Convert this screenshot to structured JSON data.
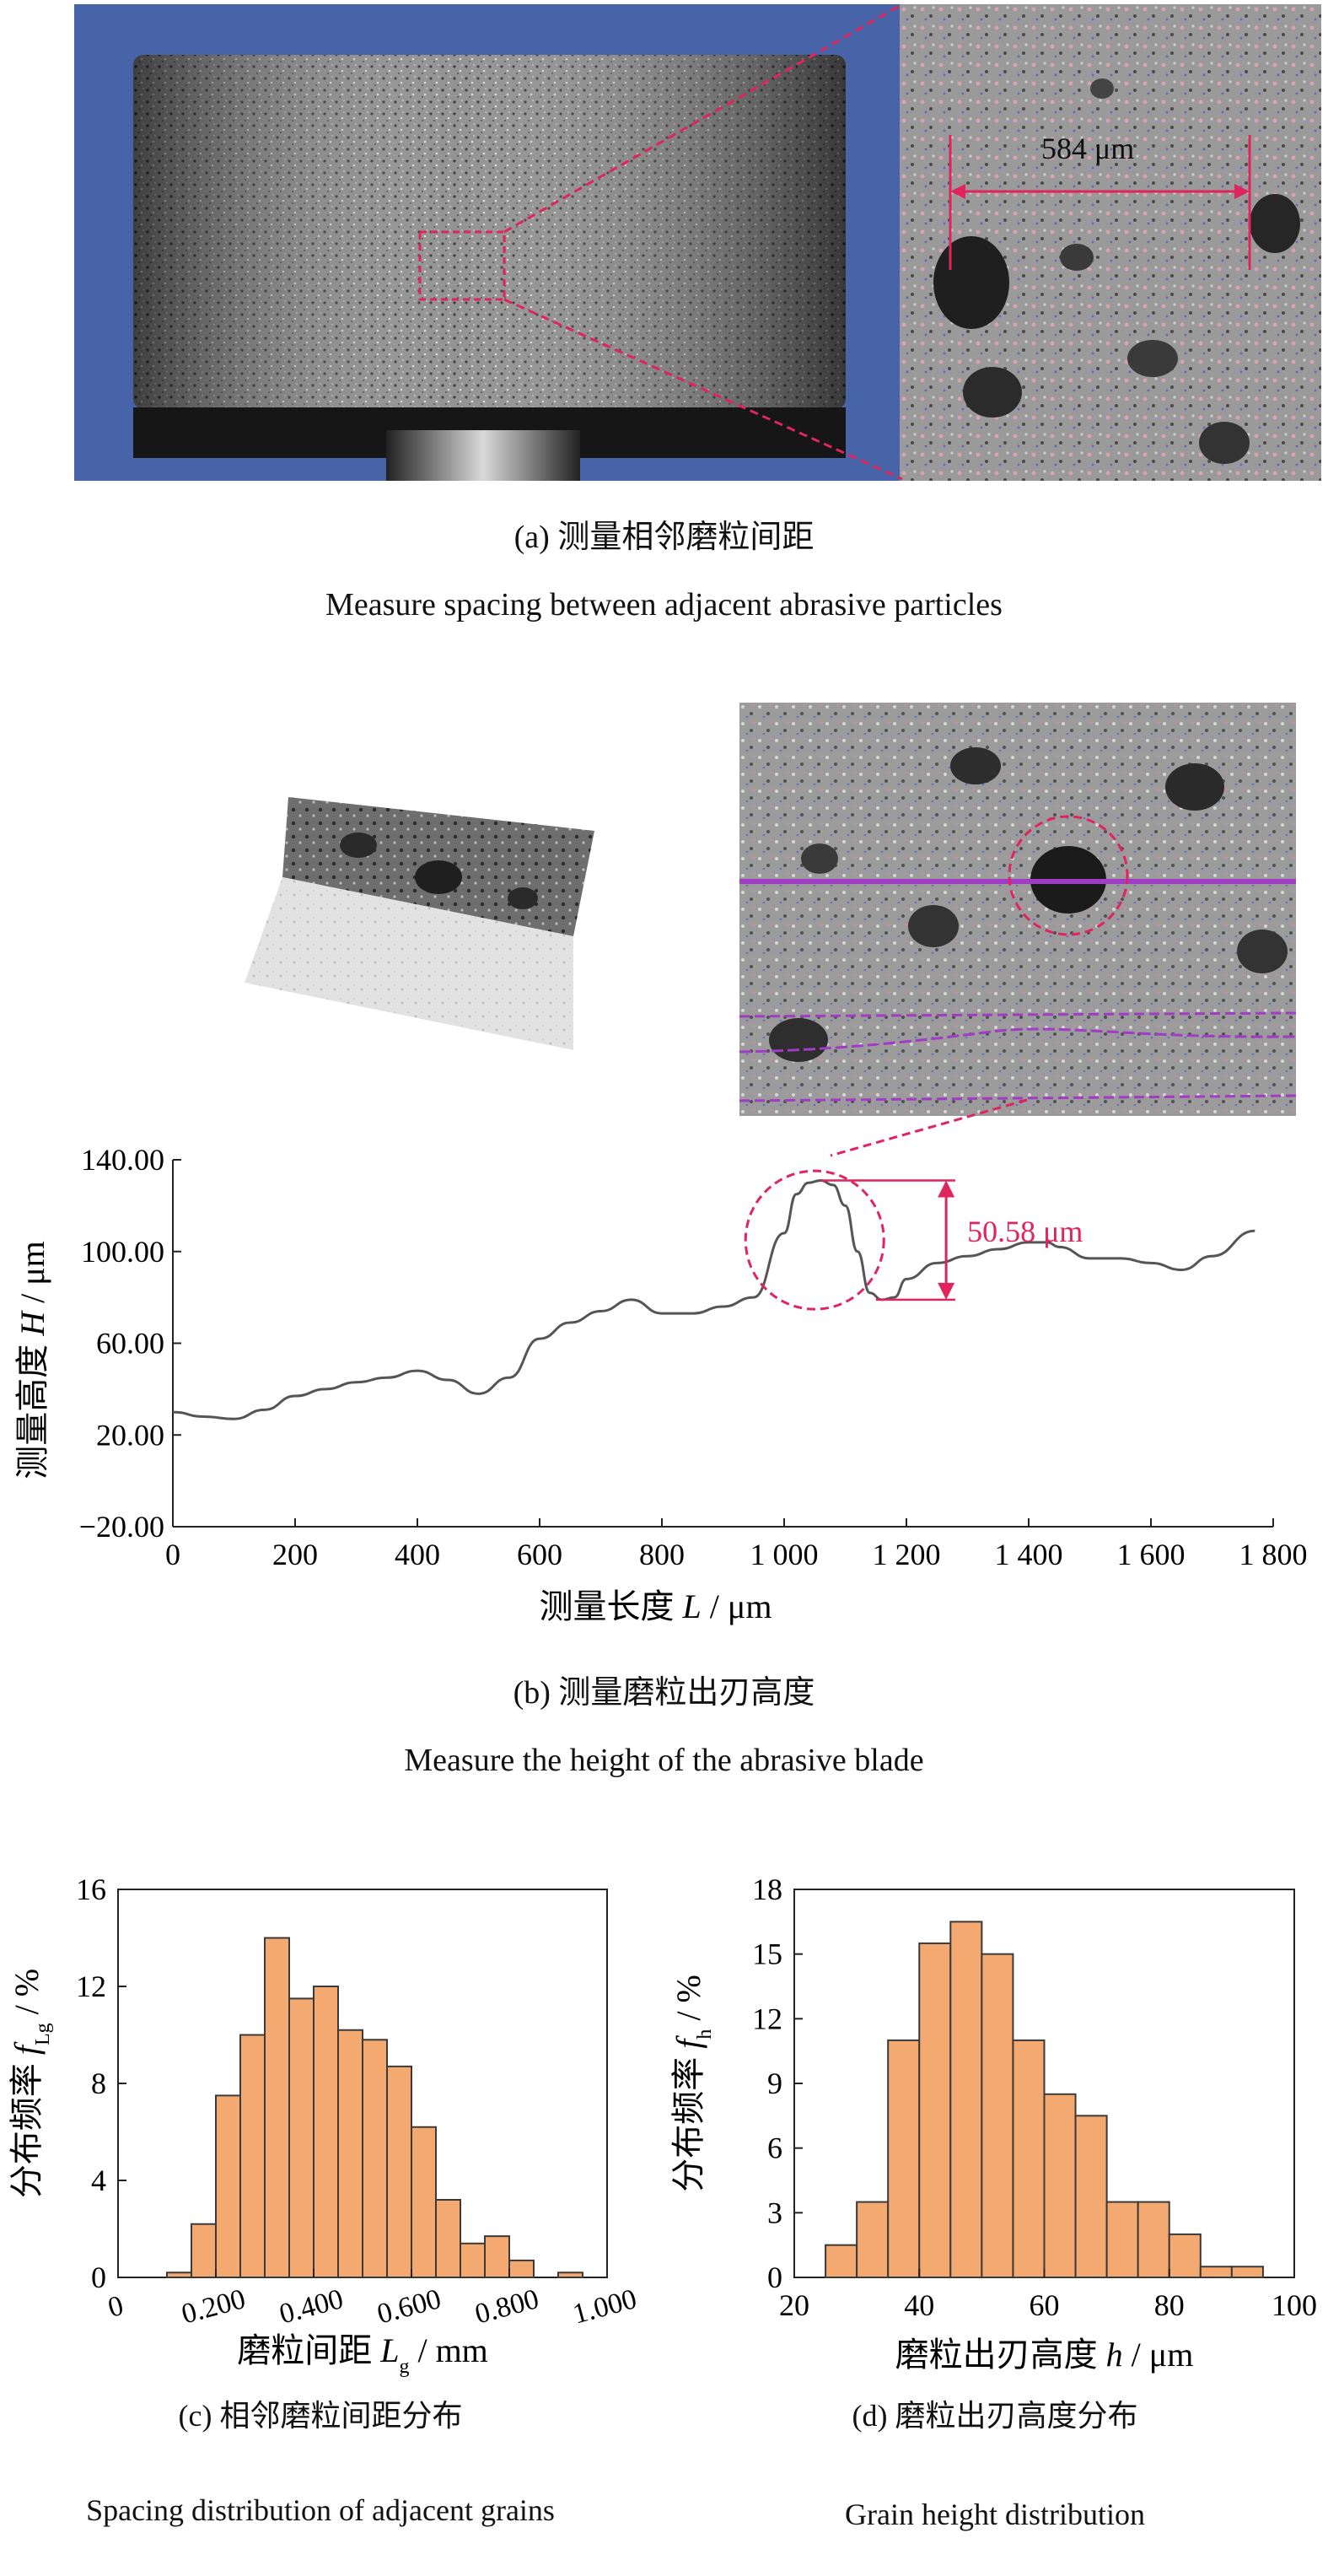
{
  "panel_a": {
    "measurement_label": "584 μm",
    "caption_cn": "(a) 测量相邻磨粒间距",
    "caption_en": "Measure spacing between adjacent abrasive particles"
  },
  "panel_b": {
    "caption_cn": "(b) 测量磨粒出刃高度",
    "caption_en": "Measure the height of the abrasive blade"
  },
  "panel_c": {
    "caption_cn": "(c) 相邻磨粒间距分布",
    "caption_en": "Spacing distribution of adjacent grains"
  },
  "panel_d": {
    "caption_cn": "(d) 磨粒出刃高度分布",
    "caption_en": "Grain height distribution"
  },
  "colors": {
    "bar_fill": "#f4a970",
    "bar_stroke": "#3a3a3a",
    "annotation": "#e0245e",
    "profile_line": "#555555",
    "photo_blue": "#3d5a9e",
    "scan_line": "#a23bc5"
  },
  "chart_data": [
    {
      "id": "profile",
      "type": "line",
      "title": "",
      "xlabel": "测量长度 L / μm",
      "ylabel": "测量高度 H / μm",
      "xlim": [
        0,
        1800
      ],
      "ylim": [
        -20,
        140
      ],
      "xticks": [
        0,
        200,
        400,
        600,
        800,
        1000,
        1200,
        1400,
        1600,
        1800
      ],
      "xtick_labels": [
        "0",
        "200",
        "400",
        "600",
        "800",
        "1 000",
        "1 200",
        "1 400",
        "1 600",
        "1 800"
      ],
      "yticks": [
        -20,
        20,
        60,
        100,
        140
      ],
      "ytick_labels": [
        "−20.00",
        "20.00",
        "60.00",
        "100.00",
        "140.00"
      ],
      "annotation": "50.58 μm",
      "x": [
        0,
        50,
        100,
        150,
        200,
        250,
        300,
        350,
        400,
        450,
        500,
        550,
        600,
        650,
        700,
        750,
        800,
        850,
        900,
        950,
        1000,
        1020,
        1040,
        1060,
        1080,
        1100,
        1120,
        1140,
        1160,
        1180,
        1200,
        1250,
        1300,
        1350,
        1400,
        1430,
        1450,
        1500,
        1550,
        1600,
        1650,
        1700,
        1770
      ],
      "y": [
        30,
        28,
        27,
        31,
        37,
        40,
        43,
        45,
        48,
        44,
        38,
        45,
        62,
        69,
        74,
        79,
        73,
        73,
        76,
        80,
        108,
        125,
        130,
        131,
        129,
        120,
        100,
        82,
        79,
        80,
        88,
        95,
        98,
        101,
        104,
        104,
        102,
        97,
        97,
        95,
        92,
        98,
        109
      ]
    },
    {
      "id": "spacing_hist",
      "type": "bar",
      "title": "",
      "xlabel": "磨粒间距 L_g / mm",
      "ylabel": "分布频率 f_Lg / %",
      "xlim": [
        0,
        1.0
      ],
      "ylim": [
        0,
        16
      ],
      "xticks": [
        0,
        0.2,
        0.4,
        0.6,
        0.8,
        1.0
      ],
      "xtick_labels": [
        "0",
        "0.200",
        "0.400",
        "0.600",
        "0.800",
        "1.000"
      ],
      "yticks": [
        0,
        4,
        8,
        12,
        16
      ],
      "ytick_labels": [
        "0",
        "4",
        "8",
        "12",
        "16"
      ],
      "bin_width": 0.05,
      "bin_centers": [
        0.125,
        0.175,
        0.225,
        0.275,
        0.325,
        0.375,
        0.425,
        0.475,
        0.525,
        0.575,
        0.625,
        0.675,
        0.725,
        0.775,
        0.825,
        0.875,
        0.925
      ],
      "values": [
        0.2,
        2.2,
        7.5,
        10.0,
        14.0,
        11.5,
        12.0,
        10.2,
        9.8,
        8.7,
        6.2,
        3.2,
        1.4,
        1.7,
        0.7,
        0,
        0.2
      ]
    },
    {
      "id": "height_hist",
      "type": "bar",
      "title": "",
      "xlabel": "磨粒出刃高度 h / μm",
      "ylabel": "分布频率 f_h / %",
      "xlim": [
        20,
        100
      ],
      "ylim": [
        0,
        18
      ],
      "xticks": [
        20,
        40,
        60,
        80,
        100
      ],
      "xtick_labels": [
        "20",
        "40",
        "60",
        "80",
        "100"
      ],
      "yticks": [
        0,
        3,
        6,
        9,
        12,
        15,
        18
      ],
      "ytick_labels": [
        "0",
        "3",
        "6",
        "9",
        "12",
        "15",
        "18"
      ],
      "bin_width": 5,
      "bin_centers": [
        27.5,
        32.5,
        37.5,
        42.5,
        47.5,
        52.5,
        57.5,
        62.5,
        67.5,
        72.5,
        77.5,
        82.5,
        87.5,
        92.5
      ],
      "values": [
        1.5,
        3.5,
        11.0,
        15.5,
        16.5,
        15.0,
        11.0,
        8.5,
        7.5,
        3.5,
        3.5,
        2.0,
        0.5,
        0.5
      ]
    }
  ]
}
